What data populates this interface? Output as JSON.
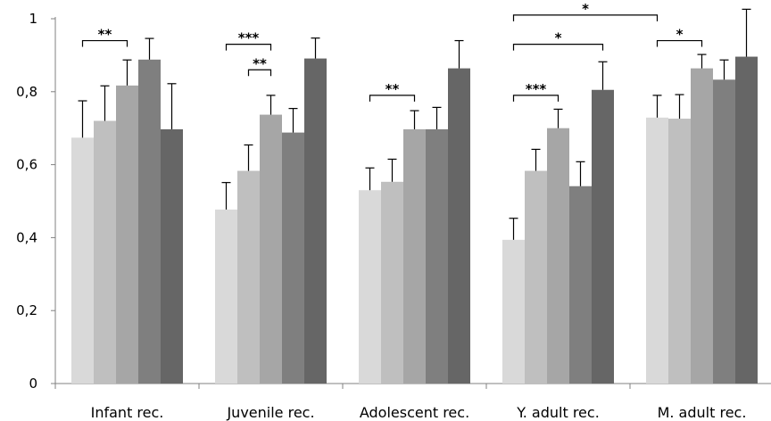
{
  "chart_data": {
    "type": "bar",
    "categories": [
      "Infant rec.",
      "Juvenile rec.",
      "Adolescent rec.",
      "Y. adult rec.",
      "M. adult rec."
    ],
    "series": [
      {
        "values": [
          0.674,
          0.477,
          0.53,
          0.394,
          0.729
        ],
        "errors": [
          0.101,
          0.074,
          0.061,
          0.059,
          0.061
        ],
        "color": "#d9d9d9"
      },
      {
        "values": [
          0.72,
          0.583,
          0.553,
          0.583,
          0.726
        ],
        "errors": [
          0.096,
          0.071,
          0.062,
          0.059,
          0.066
        ],
        "color": "#bfbfbf"
      },
      {
        "values": [
          0.817,
          0.737,
          0.697,
          0.7,
          0.864
        ],
        "errors": [
          0.07,
          0.053,
          0.051,
          0.052,
          0.038
        ],
        "color": "#a6a6a6"
      },
      {
        "values": [
          0.888,
          0.688,
          0.697,
          0.541,
          0.833
        ],
        "errors": [
          0.058,
          0.066,
          0.06,
          0.067,
          0.054
        ],
        "color": "#7f7f7f"
      },
      {
        "values": [
          0.697,
          0.891,
          0.864,
          0.805,
          0.896
        ],
        "errors": [
          0.125,
          0.056,
          0.076,
          0.077,
          0.13
        ],
        "color": "#666666"
      }
    ],
    "y_ticks": [
      "0",
      "0,2",
      "0,4",
      "0,6",
      "0,8",
      "1"
    ],
    "ylim": [
      0,
      1.0
    ],
    "grid": false,
    "legend": "none",
    "significance": [
      {
        "category": 0,
        "from": 0,
        "to": 2,
        "level": 0.94,
        "label": "**"
      },
      {
        "category": 1,
        "from": 0,
        "to": 2,
        "level": 0.93,
        "label": "***"
      },
      {
        "category": 1,
        "from": 1,
        "to": 2,
        "level": 0.86,
        "label": "**"
      },
      {
        "category": 2,
        "from": 0,
        "to": 2,
        "level": 0.79,
        "label": "**"
      },
      {
        "category": 3,
        "from": 0,
        "to": 2,
        "level": 0.79,
        "label": "***"
      },
      {
        "category": 3,
        "from": 0,
        "to": 4,
        "level": 0.93,
        "label": "*"
      },
      {
        "category": 3,
        "to_category": 4,
        "from": 0,
        "to": 0,
        "level": 1.01,
        "label": "*"
      },
      {
        "category": 4,
        "from": 0,
        "to": 2,
        "level": 0.94,
        "label": "*"
      }
    ]
  }
}
